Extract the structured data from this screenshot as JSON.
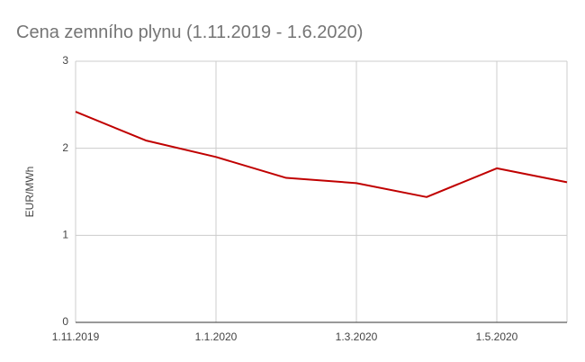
{
  "chart_data": {
    "type": "line",
    "title": "Cena zemního plynu (1.11.2019 - 1.6.2020)",
    "y_label": "EUR/MWh",
    "categories": [
      "1.11.2019",
      null,
      "1.1.2020",
      null,
      "1.3.2020",
      null,
      "1.5.2020",
      null
    ],
    "values": [
      2.42,
      2.09,
      1.9,
      1.66,
      1.6,
      1.44,
      1.77,
      1.61
    ],
    "color": "#c00000",
    "ylim": [
      0,
      3
    ],
    "yticks": [
      0,
      1,
      2,
      3
    ],
    "grid": true
  }
}
